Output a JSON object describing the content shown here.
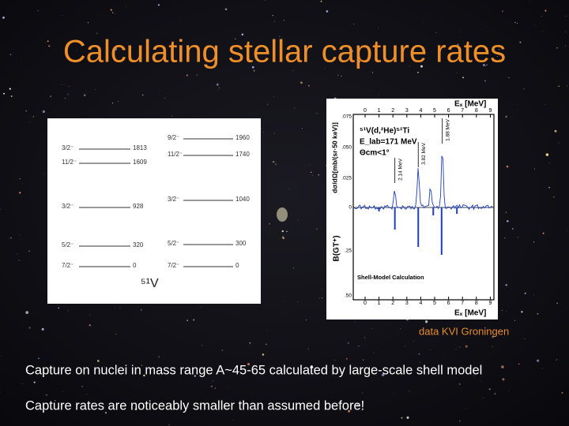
{
  "title": "Calculating stellar capture rates",
  "level_scheme": {
    "nucleus": "⁵¹V",
    "left": [
      {
        "spin": "3/2⁻",
        "energy": "1813"
      },
      {
        "spin": "11/2⁻",
        "energy": "1609"
      },
      {
        "spin": "3/2⁻",
        "energy": "928"
      },
      {
        "spin": "5/2⁻",
        "energy": "320"
      },
      {
        "spin": "7/2⁻",
        "energy": "0"
      }
    ],
    "right": [
      {
        "spin": "9/2⁻",
        "energy": "1960"
      },
      {
        "spin": "11/2⁻",
        "energy": "1740"
      },
      {
        "spin": "3/2⁻",
        "energy": "1040"
      },
      {
        "spin": "5/2⁻",
        "energy": "300"
      },
      {
        "spin": "7/2⁻",
        "energy": "0"
      }
    ]
  },
  "spectrum": {
    "x_label_top": "Eₓ [MeV]",
    "x_label_bottom": "Eₓ [MeV]",
    "x_ticks": [
      "0",
      "1",
      "2",
      "3",
      "4",
      "5",
      "6",
      "7",
      "8",
      "9"
    ],
    "reaction": "⁵¹V(d,²He)⁵¹Ti",
    "beam_energy": "E_lab=171 MeV",
    "angle": "Θcm<1°",
    "y_label_top": "dσ/dΩ[mb/(sr·50 keV)]",
    "y_label_bottom": "B(GT⁺)",
    "y_ticks_top": [
      ".075",
      ".050",
      ".025",
      "0"
    ],
    "y_ticks_bottom": [
      ".25",
      ".50"
    ],
    "peaks": [
      "2.14 MeV",
      "3.82 MeV",
      "1.88 MeV"
    ],
    "model_label": "Shell-Model Calculation"
  },
  "caption": "data KVI Groningen",
  "bullets": [
    "Capture on nuclei in mass range A~45-65 calculated by large-scale shell model",
    "Capture rates are noticeably smaller than assumed before!"
  ]
}
